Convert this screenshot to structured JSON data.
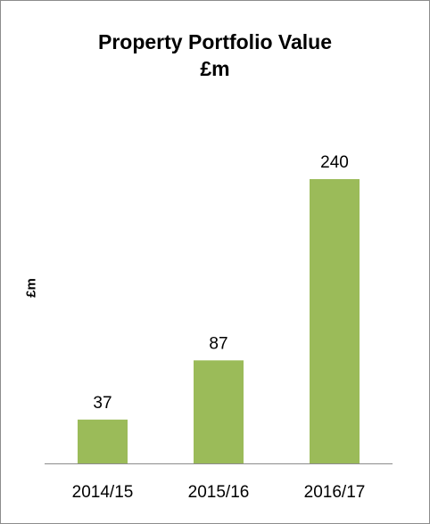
{
  "chart_data": {
    "type": "bar",
    "title": "Property Portfolio Value",
    "subtitle": "£m",
    "ylabel": "£m",
    "xlabel": "",
    "categories": [
      "2014/15",
      "2015/16",
      "2016/17"
    ],
    "values": [
      37,
      87,
      240
    ],
    "data_labels": [
      "37",
      "87",
      "240"
    ],
    "ylim": [
      0,
      300
    ],
    "bar_color": "#9BBB59",
    "grid": false,
    "legend": "none"
  }
}
